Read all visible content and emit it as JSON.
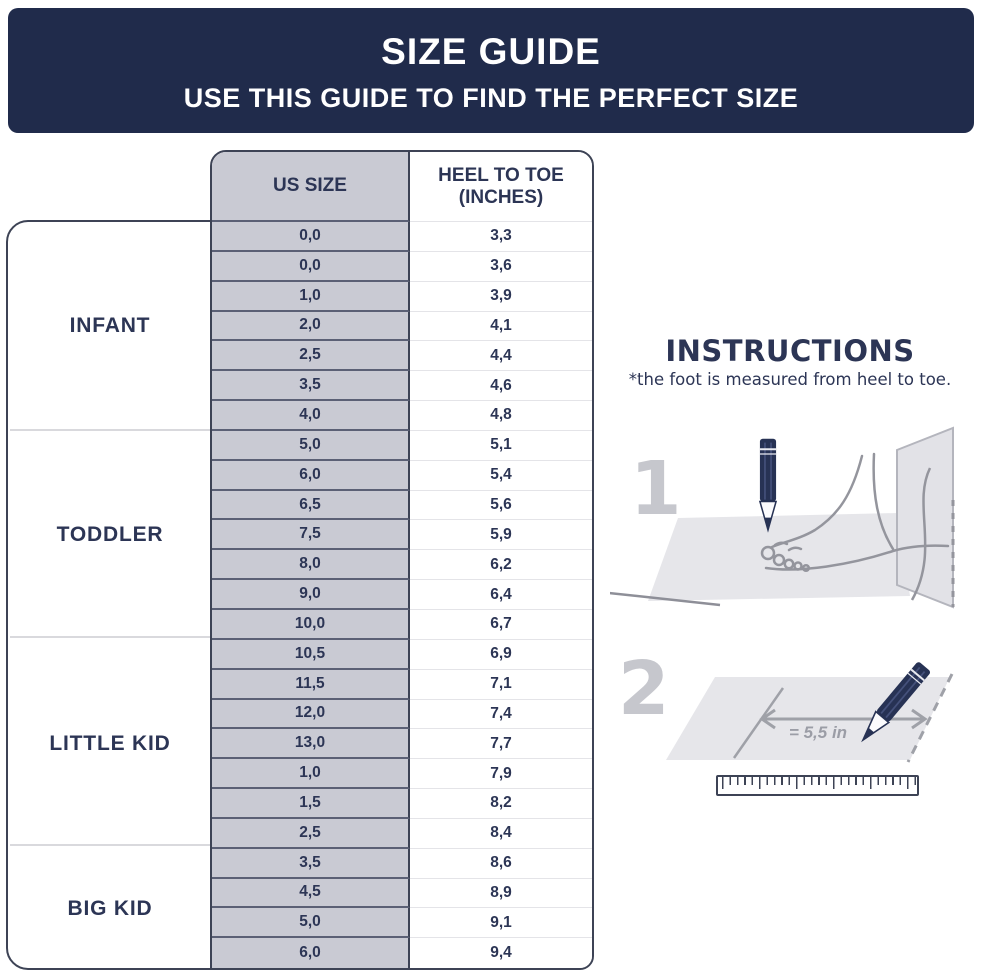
{
  "header": {
    "title": "SIZE GUIDE",
    "subtitle": "USE THIS GUIDE TO FIND THE PERFECT SIZE"
  },
  "table": {
    "col1_header": "US SIZE",
    "col2_header_line1": "HEEL TO TOE",
    "col2_header_line2": "(INCHES)",
    "groups": [
      {
        "label": "INFANT",
        "rows": [
          [
            "0,0",
            "3,3"
          ],
          [
            "0,0",
            "3,6"
          ],
          [
            "1,0",
            "3,9"
          ],
          [
            "2,0",
            "4,1"
          ],
          [
            "2,5",
            "4,4"
          ],
          [
            "3,5",
            "4,6"
          ],
          [
            "4,0",
            "4,8"
          ]
        ]
      },
      {
        "label": "TODDLER",
        "rows": [
          [
            "5,0",
            "5,1"
          ],
          [
            "6,0",
            "5,4"
          ],
          [
            "6,5",
            "5,6"
          ],
          [
            "7,5",
            "5,9"
          ],
          [
            "8,0",
            "6,2"
          ],
          [
            "9,0",
            "6,4"
          ],
          [
            "10,0",
            "6,7"
          ]
        ]
      },
      {
        "label": "LITTLE KID",
        "rows": [
          [
            "10,5",
            "6,9"
          ],
          [
            "11,5",
            "7,1"
          ],
          [
            "12,0",
            "7,4"
          ],
          [
            "13,0",
            "7,7"
          ],
          [
            "1,0",
            "7,9"
          ],
          [
            "1,5",
            "8,2"
          ],
          [
            "2,5",
            "8,4"
          ]
        ]
      },
      {
        "label": "BIG KID",
        "rows": [
          [
            "3,5",
            "8,6"
          ],
          [
            "4,5",
            "8,9"
          ],
          [
            "5,0",
            "9,1"
          ],
          [
            "6,0",
            "9,4"
          ]
        ]
      }
    ]
  },
  "instructions": {
    "title": "INSTRUCTIONS",
    "note": "*the foot is measured from heel to toe.",
    "steps": [
      {
        "number": "1"
      },
      {
        "number": "2",
        "measurement_label": "= 5,5 in"
      }
    ]
  },
  "colors": {
    "banner_bg": "#202b4b",
    "text_navy": "#2c3555",
    "size_column_bg": "#c9cad3",
    "border_dark": "#3d4355",
    "illustration_gray": "#9fa1a8",
    "paper_gray": "#e6e6ea",
    "numeral_gray": "#c6c7cd",
    "pencil_navy": "#273254"
  }
}
